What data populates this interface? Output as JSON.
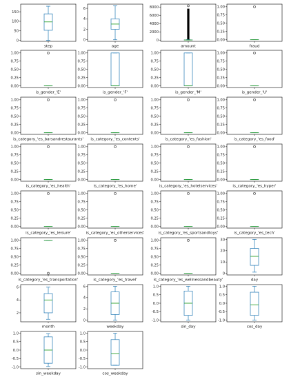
{
  "chart_data": {
    "type": "box",
    "layout": {
      "rows": 8,
      "cols": 4
    },
    "box_color": "#1f77b4",
    "median_color": "#2ca02c",
    "outlier_color": "#333333",
    "panels": [
      {
        "label": "step",
        "ylim": [
          -5,
          190
        ],
        "yticks": [
          0,
          50,
          100,
          150
        ],
        "tick_labels": [
          "0",
          "50",
          "100",
          "150"
        ],
        "whisker_low": 0,
        "q1": 53,
        "median": 97,
        "q3": 139,
        "whisker_high": 179,
        "outliers": []
      },
      {
        "label": "age",
        "ylim": [
          -0.3,
          6.8
        ],
        "yticks": [
          0,
          2,
          4,
          6
        ],
        "tick_labels": [
          "0",
          "2",
          "4",
          "6"
        ],
        "whisker_low": 0,
        "q1": 2,
        "median": 3,
        "q3": 4,
        "whisker_high": 6.5,
        "outliers": []
      },
      {
        "label": "amount",
        "ylim": [
          -300,
          8700
        ],
        "yticks": [
          0,
          2000,
          4000,
          6000,
          8000
        ],
        "tick_labels": [
          "0",
          "2000",
          "4000",
          "6000",
          "8000"
        ],
        "whisker_low": 0,
        "q1": 13,
        "median": 27,
        "q3": 53,
        "whisker_high": 113,
        "outliers_dense": {
          "from": 113,
          "to": 7600
        },
        "outliers": [
          8300
        ]
      },
      {
        "label": "fraud",
        "ylim": [
          -0.05,
          1.08
        ],
        "yticks": [
          0,
          0.25,
          0.5,
          0.75,
          1.0
        ],
        "tick_labels": [
          "0.00",
          "0.25",
          "0.50",
          "0.75",
          "1.00"
        ],
        "whisker_low": 0,
        "q1": 0,
        "median": 0,
        "q3": 0,
        "whisker_high": 0,
        "outliers": [
          1
        ]
      },
      {
        "label": "is_gender_'E'",
        "ylim": [
          -0.05,
          1.08
        ],
        "yticks": [
          0,
          0.25,
          0.5,
          0.75,
          1.0
        ],
        "tick_labels": [
          "0.00",
          "0.25",
          "0.50",
          "0.75",
          "1.00"
        ],
        "whisker_low": 0,
        "q1": 0,
        "median": 0,
        "q3": 0,
        "whisker_high": 0,
        "outliers": [
          1
        ]
      },
      {
        "label": "is_gender_'F'",
        "ylim": [
          -0.05,
          1.08
        ],
        "yticks": [
          0,
          0.25,
          0.5,
          0.75,
          1.0
        ],
        "tick_labels": [
          "0.00",
          "0.25",
          "0.50",
          "0.75",
          "1.00"
        ],
        "whisker_low": 0,
        "q1": 0,
        "median": 0,
        "q3": 1,
        "whisker_high": 1,
        "outliers": []
      },
      {
        "label": "is_gender_'M'",
        "ylim": [
          -0.05,
          1.08
        ],
        "yticks": [
          0,
          0.25,
          0.5,
          0.75,
          1.0
        ],
        "tick_labels": [
          "0.00",
          "0.25",
          "0.50",
          "0.75",
          "1.00"
        ],
        "whisker_low": 0,
        "q1": 0,
        "median": 0,
        "q3": 1,
        "whisker_high": 1,
        "outliers": []
      },
      {
        "label": "is_gender_'U'",
        "ylim": [
          -0.05,
          1.08
        ],
        "yticks": [
          0,
          0.25,
          0.5,
          0.75,
          1.0
        ],
        "tick_labels": [
          "0.00",
          "0.25",
          "0.50",
          "0.75",
          "1.00"
        ],
        "whisker_low": 0,
        "q1": 0,
        "median": 0,
        "q3": 0,
        "whisker_high": 0,
        "outliers": [
          1
        ]
      },
      {
        "label": "is_category_'es_barsandrestaurants'",
        "ylim": [
          -0.05,
          1.08
        ],
        "yticks": [
          0,
          0.25,
          0.5,
          0.75,
          1.0
        ],
        "tick_labels": [
          "0.00",
          "0.25",
          "0.50",
          "0.75",
          "1.00"
        ],
        "whisker_low": 0,
        "q1": 0,
        "median": 0,
        "q3": 0,
        "whisker_high": 0,
        "outliers": [
          1
        ]
      },
      {
        "label": "is_category_'es_contents'",
        "ylim": [
          -0.05,
          1.08
        ],
        "yticks": [
          0,
          0.25,
          0.5,
          0.75,
          1.0
        ],
        "tick_labels": [
          "0.00",
          "0.25",
          "0.50",
          "0.75",
          "1.00"
        ],
        "whisker_low": 0,
        "q1": 0,
        "median": 0,
        "q3": 0,
        "whisker_high": 0,
        "outliers": [
          1
        ]
      },
      {
        "label": "is_category_'es_fashion'",
        "ylim": [
          -0.05,
          1.08
        ],
        "yticks": [
          0,
          0.25,
          0.5,
          0.75,
          1.0
        ],
        "tick_labels": [
          "0.00",
          "0.25",
          "0.50",
          "0.75",
          "1.00"
        ],
        "whisker_low": 0,
        "q1": 0,
        "median": 0,
        "q3": 0,
        "whisker_high": 0,
        "outliers": [
          1
        ]
      },
      {
        "label": "is_category_'es_food'",
        "ylim": [
          -0.05,
          1.08
        ],
        "yticks": [
          0,
          0.25,
          0.5,
          0.75,
          1.0
        ],
        "tick_labels": [
          "0.00",
          "0.25",
          "0.50",
          "0.75",
          "1.00"
        ],
        "whisker_low": 0,
        "q1": 0,
        "median": 0,
        "q3": 0,
        "whisker_high": 0,
        "outliers": [
          1
        ]
      },
      {
        "label": "is_category_'es_health'",
        "ylim": [
          -0.05,
          1.08
        ],
        "yticks": [
          0,
          0.25,
          0.5,
          0.75,
          1.0
        ],
        "tick_labels": [
          "0.00",
          "0.25",
          "0.50",
          "0.75",
          "1.00"
        ],
        "whisker_low": 0,
        "q1": 0,
        "median": 0,
        "q3": 0,
        "whisker_high": 0,
        "outliers": [
          1
        ]
      },
      {
        "label": "is_category_'es_home'",
        "ylim": [
          -0.05,
          1.08
        ],
        "yticks": [
          0,
          0.25,
          0.5,
          0.75,
          1.0
        ],
        "tick_labels": [
          "0.00",
          "0.25",
          "0.50",
          "0.75",
          "1.00"
        ],
        "whisker_low": 0,
        "q1": 0,
        "median": 0,
        "q3": 0,
        "whisker_high": 0,
        "outliers": [
          1
        ]
      },
      {
        "label": "is_category_'es_hotelservices'",
        "ylim": [
          -0.05,
          1.08
        ],
        "yticks": [
          0,
          0.25,
          0.5,
          0.75,
          1.0
        ],
        "tick_labels": [
          "0.00",
          "0.25",
          "0.50",
          "0.75",
          "1.00"
        ],
        "whisker_low": 0,
        "q1": 0,
        "median": 0,
        "q3": 0,
        "whisker_high": 0,
        "outliers": [
          1
        ]
      },
      {
        "label": "is_category_'es_hyper'",
        "ylim": [
          -0.05,
          1.08
        ],
        "yticks": [
          0,
          0.25,
          0.5,
          0.75,
          1.0
        ],
        "tick_labels": [
          "0.00",
          "0.25",
          "0.50",
          "0.75",
          "1.00"
        ],
        "whisker_low": 0,
        "q1": 0,
        "median": 0,
        "q3": 0,
        "whisker_high": 0,
        "outliers": [
          1
        ]
      },
      {
        "label": "is_category_'es_leisure'",
        "ylim": [
          -0.05,
          1.08
        ],
        "yticks": [
          0,
          0.25,
          0.5,
          0.75,
          1.0
        ],
        "tick_labels": [
          "0.00",
          "0.25",
          "0.50",
          "0.75",
          "1.00"
        ],
        "whisker_low": 0,
        "q1": 0,
        "median": 0,
        "q3": 0,
        "whisker_high": 0,
        "outliers": [
          1
        ]
      },
      {
        "label": "is_category_'es_otherservices'",
        "ylim": [
          -0.05,
          1.08
        ],
        "yticks": [
          0,
          0.25,
          0.5,
          0.75,
          1.0
        ],
        "tick_labels": [
          "0.00",
          "0.25",
          "0.50",
          "0.75",
          "1.00"
        ],
        "whisker_low": 0,
        "q1": 0,
        "median": 0,
        "q3": 0,
        "whisker_high": 0,
        "outliers": [
          1
        ]
      },
      {
        "label": "is_category_'es_sportsandtoys'",
        "ylim": [
          -0.05,
          1.08
        ],
        "yticks": [
          0,
          0.25,
          0.5,
          0.75,
          1.0
        ],
        "tick_labels": [
          "0.00",
          "0.25",
          "0.50",
          "0.75",
          "1.00"
        ],
        "whisker_low": 0,
        "q1": 0,
        "median": 0,
        "q3": 0,
        "whisker_high": 0,
        "outliers": [
          1
        ]
      },
      {
        "label": "is_category_'es_tech'",
        "ylim": [
          -0.05,
          1.08
        ],
        "yticks": [
          0,
          0.25,
          0.5,
          0.75,
          1.0
        ],
        "tick_labels": [
          "0.00",
          "0.25",
          "0.50",
          "0.75",
          "1.00"
        ],
        "whisker_low": 0,
        "q1": 0,
        "median": 0,
        "q3": 0,
        "whisker_high": 0,
        "outliers": [
          1
        ]
      },
      {
        "label": "is_category_'es_transportation'",
        "ylim": [
          -0.05,
          1.08
        ],
        "yticks": [
          0,
          0.25,
          0.5,
          0.75,
          1.0
        ],
        "tick_labels": [
          "0.00",
          "0.25",
          "0.50",
          "0.75",
          "1.00"
        ],
        "whisker_low": 1,
        "q1": 1,
        "median": 1,
        "q3": 1,
        "whisker_high": 1,
        "outliers": [
          0
        ]
      },
      {
        "label": "is_category_'es_travel'",
        "ylim": [
          -0.05,
          1.08
        ],
        "yticks": [
          0,
          0.25,
          0.5,
          0.75,
          1.0
        ],
        "tick_labels": [
          "0.00",
          "0.25",
          "0.50",
          "0.75",
          "1.00"
        ],
        "whisker_low": 0,
        "q1": 0,
        "median": 0,
        "q3": 0,
        "whisker_high": 0,
        "outliers": [
          1
        ]
      },
      {
        "label": "is_category_'es_wellnessandbeauty'",
        "ylim": [
          -0.05,
          1.08
        ],
        "yticks": [
          0,
          0.25,
          0.5,
          0.75,
          1.0
        ],
        "tick_labels": [
          "0.00",
          "0.25",
          "0.50",
          "0.75",
          "1.00"
        ],
        "whisker_low": 0,
        "q1": 0,
        "median": 0,
        "q3": 0,
        "whisker_high": 0,
        "outliers": [
          1
        ]
      },
      {
        "label": "day",
        "ylim": [
          -1.5,
          31.5
        ],
        "yticks": [
          0,
          10,
          20,
          30
        ],
        "tick_labels": [
          "0",
          "10",
          "20",
          "30"
        ],
        "whisker_low": 1,
        "q1": 7,
        "median": 15,
        "q3": 22,
        "whisker_high": 30,
        "outliers": []
      },
      {
        "label": "month",
        "ylim": [
          0.6,
          6.4
        ],
        "yticks": [
          2,
          4,
          6
        ],
        "tick_labels": [
          "2",
          "4",
          "6"
        ],
        "whisker_low": 1,
        "q1": 2,
        "median": 4,
        "q3": 5,
        "whisker_high": 6,
        "outliers": []
      },
      {
        "label": "weekday",
        "ylim": [
          -0.3,
          6.3
        ],
        "yticks": [
          0,
          2,
          4,
          6
        ],
        "tick_labels": [
          "0",
          "2",
          "4",
          "6"
        ],
        "whisker_low": 0,
        "q1": 1,
        "median": 3,
        "q3": 5,
        "whisker_high": 6,
        "outliers": []
      },
      {
        "label": "sin_day",
        "ylim": [
          -1.1,
          1.1
        ],
        "yticks": [
          -1,
          -0.5,
          0,
          0.5,
          1
        ],
        "tick_labels": [
          "-1.0",
          "-0.5",
          "0.0",
          "0.5",
          "1.0"
        ],
        "whisker_low": -1,
        "q1": -0.72,
        "median": 0,
        "q3": 0.72,
        "whisker_high": 1,
        "outliers": []
      },
      {
        "label": "cos_day",
        "ylim": [
          -1.1,
          1.1
        ],
        "yticks": [
          -1,
          -0.5,
          0,
          0.5,
          1
        ],
        "tick_labels": [
          "-1.0",
          "-0.5",
          "0.0",
          "0.5",
          "1.0"
        ],
        "whisker_low": -1,
        "q1": -0.72,
        "median": -0.1,
        "q3": 0.65,
        "whisker_high": 1,
        "outliers": []
      },
      {
        "label": "sin_weekday",
        "ylim": [
          -1.1,
          1.1
        ],
        "yticks": [
          -1,
          -0.5,
          0,
          0.5,
          1
        ],
        "tick_labels": [
          "-1.0",
          "-0.5",
          "0.0",
          "0.5",
          "1.0"
        ],
        "whisker_low": -0.97,
        "q1": -0.78,
        "median": 0,
        "q3": 0.78,
        "whisker_high": 0.97,
        "outliers": []
      },
      {
        "label": "cos_weekday",
        "ylim": [
          -1.1,
          1.1
        ],
        "yticks": [
          -1,
          -0.5,
          0,
          0.5,
          1
        ],
        "tick_labels": [
          "-1.0",
          "-0.5",
          "0.0",
          "0.5",
          "1.0"
        ],
        "whisker_low": -0.9,
        "q1": -0.9,
        "median": -0.22,
        "q3": 0.62,
        "whisker_high": 1,
        "outliers": []
      }
    ]
  }
}
